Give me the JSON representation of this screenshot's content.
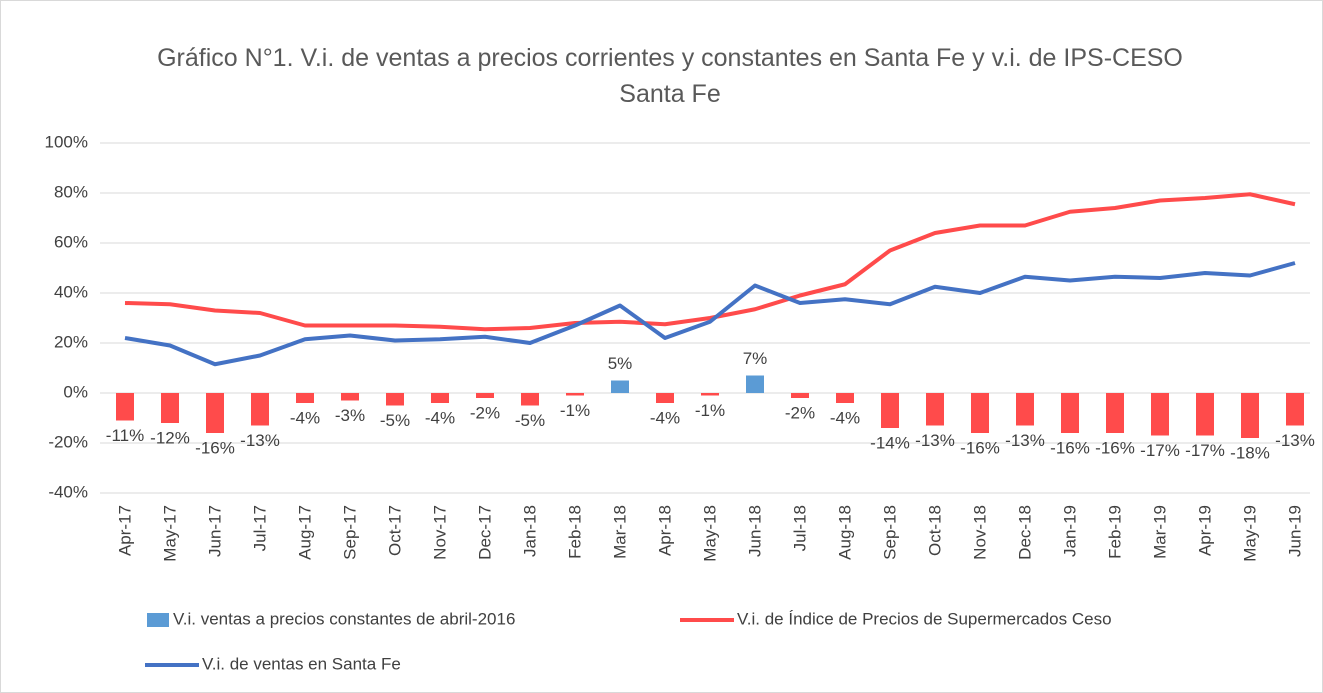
{
  "chart_data": {
    "type": "combo",
    "title": "Gráfico N°1. V.i. de ventas a precios corrientes y constantes en Santa Fe y v.i. de IPS-CESO Santa Fe",
    "categories": [
      "Apr-17",
      "May-17",
      "Jun-17",
      "Jul-17",
      "Aug-17",
      "Sep-17",
      "Oct-17",
      "Nov-17",
      "Dec-17",
      "Jan-18",
      "Feb-18",
      "Mar-18",
      "Apr-18",
      "May-18",
      "Jun-18",
      "Jul-18",
      "Aug-18",
      "Sep-18",
      "Oct-18",
      "Nov-18",
      "Dec-18",
      "Jan-19",
      "Feb-19",
      "Mar-19",
      "Apr-19",
      "May-19",
      "Jun-19"
    ],
    "series": [
      {
        "name": "V.i. ventas a precios constantes de abril-2016",
        "type": "bar",
        "color": "#5b9bd5",
        "negative_color": "#ff4b4b",
        "values": [
          -11,
          -12,
          -16,
          -13,
          -4,
          -3,
          -5,
          -4,
          -2,
          -5,
          -1,
          5,
          -4,
          -1,
          7,
          -2,
          -4,
          -14,
          -13,
          -16,
          -13,
          -16,
          -16,
          -17,
          -17,
          -18,
          -13
        ],
        "value_labels": [
          "-11%",
          "-12%",
          "-16%",
          "-13%",
          "-4%",
          "-3%",
          "-5%",
          "-4%",
          "-2%",
          "-5%",
          "-1%",
          "5%",
          "-4%",
          "-1%",
          "7%",
          "-2%",
          "-4%",
          "-14%",
          "-13%",
          "-16%",
          "-13%",
          "-16%",
          "-16%",
          "-17%",
          "-17%",
          "-18%",
          "-13%"
        ]
      },
      {
        "name": "V.i. de Índice de Precios de Supermercados Ceso",
        "type": "line",
        "color": "#ff4b4b",
        "values": [
          36,
          35.5,
          33,
          32,
          27,
          27,
          27,
          26.5,
          25.5,
          26,
          28,
          28.5,
          27.5,
          30,
          33.5,
          39,
          43.5,
          57,
          64,
          67,
          67,
          72.5,
          74,
          77,
          78,
          79.5,
          75.5
        ]
      },
      {
        "name": "V.i. de ventas en Santa Fe",
        "type": "line",
        "color": "#4472c4",
        "values": [
          22,
          19,
          11.5,
          15,
          21.5,
          23,
          21,
          21.5,
          22.5,
          20,
          27,
          35,
          22,
          28.5,
          43,
          36,
          37.5,
          35.5,
          42.5,
          40,
          46.5,
          45,
          46.5,
          46,
          48,
          47,
          52
        ]
      }
    ],
    "ylim": [
      -40,
      100
    ],
    "yticks": [
      {
        "value": -40,
        "label": "-40%"
      },
      {
        "value": -20,
        "label": "-20%"
      },
      {
        "value": 0,
        "label": "0%"
      },
      {
        "value": 20,
        "label": "20%"
      },
      {
        "value": 40,
        "label": "40%"
      },
      {
        "value": 60,
        "label": "60%"
      },
      {
        "value": 80,
        "label": "80%"
      },
      {
        "value": 100,
        "label": "100%"
      }
    ],
    "grid": true,
    "legend": "bottom"
  }
}
